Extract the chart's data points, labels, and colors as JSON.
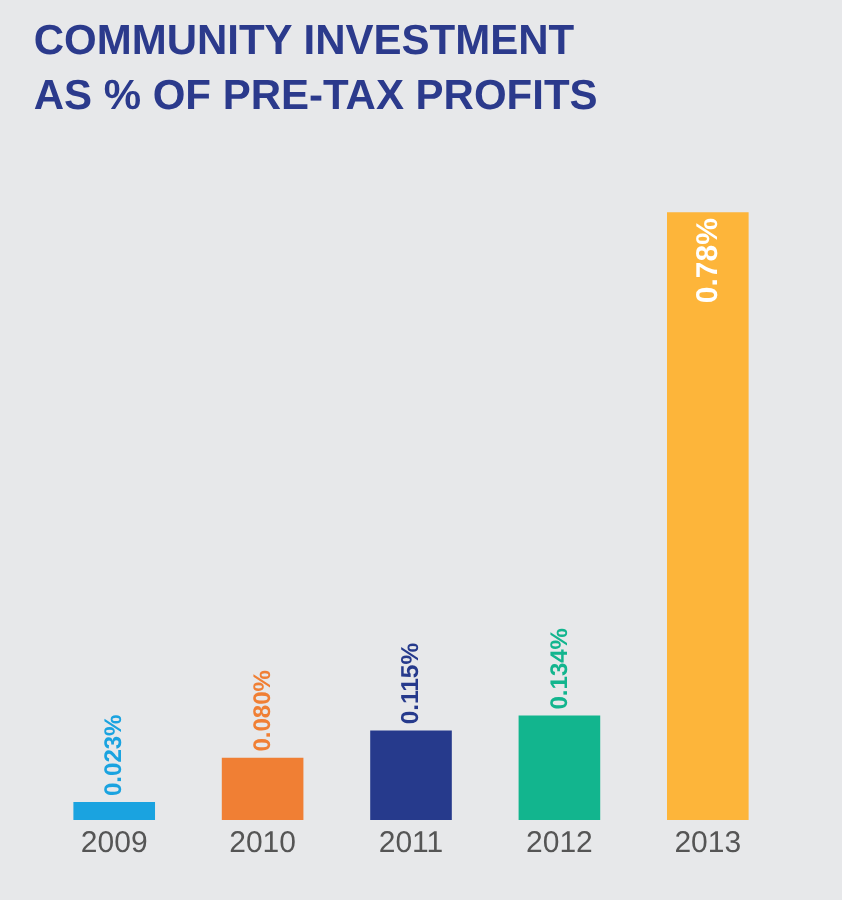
{
  "chart_data": {
    "type": "bar",
    "title": "COMMUNITY INVESTMENT\nAS % OF PRE-TAX PROFITS",
    "categories": [
      "2009",
      "2010",
      "2011",
      "2012",
      "2013"
    ],
    "values": [
      0.023,
      0.08,
      0.115,
      0.134,
      0.78
    ],
    "value_labels": [
      "0.023%",
      "0.080%",
      "0.115%",
      "0.134%",
      "0.78%"
    ],
    "colors": [
      "#1aa3e0",
      "#f07f34",
      "#263a8c",
      "#12b58e",
      "#fdb53a"
    ]
  }
}
